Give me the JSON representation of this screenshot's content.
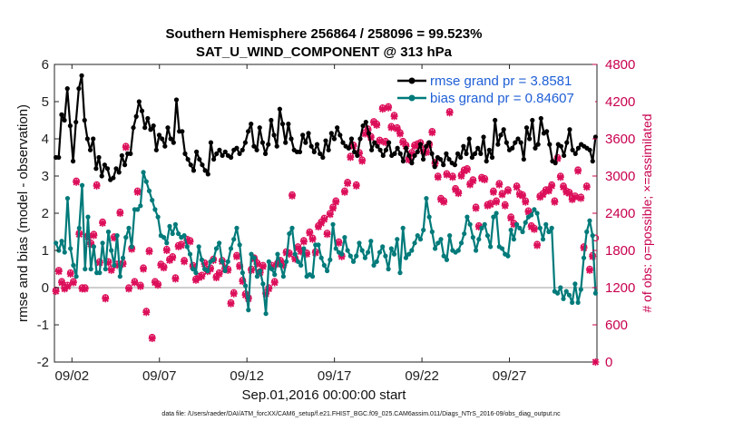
{
  "title_line1": "Southern Hemisphere 256864 / 258096 = 99.523%",
  "title_line2": "SAT_U_WIND_COMPONENT @ 313 hPa",
  "footnote": "data file: /Users/raeder/DAI/ATM_forcXX/CAM6_setup/f.e21.FHIST_BGC.f09_025.CAM6assim.011/Diags_NTrS_2016-09/obs_diag_output.nc",
  "chart_data": {
    "type": "line",
    "xlabel": "Sep.01,2016 00:00:00 start",
    "ylabel": "rmse and bias (model - observation)",
    "ylabel_right": "# of obs: o=possible; ×=assimilated",
    "xlim": [
      0,
      31
    ],
    "ylim": [
      -2,
      6
    ],
    "ylim_right": [
      0,
      4800
    ],
    "x_ticks": [
      1,
      6,
      11,
      16,
      21,
      26
    ],
    "x_tick_labels": [
      "09/02",
      "09/07",
      "09/12",
      "09/17",
      "09/22",
      "09/27"
    ],
    "y_ticks": [
      -2,
      -1,
      0,
      1,
      2,
      3,
      4,
      5,
      6
    ],
    "y_tick_labels": [
      "-2",
      "-1",
      "0",
      "1",
      "2",
      "3",
      "4",
      "5",
      "6"
    ],
    "y_right_ticks": [
      0,
      600,
      1200,
      1800,
      2400,
      3000,
      3600,
      4200,
      4800
    ],
    "y_right_tick_labels": [
      "0",
      "600",
      "1200",
      "1800",
      "2400",
      "3000",
      "3600",
      "4200",
      "4800"
    ],
    "legend_position": "top-right",
    "zero_line": 0,
    "series": [
      {
        "name": "rmse grand pr = 3.8581",
        "color": "#000000",
        "marker": "circle",
        "values": [
          3.5,
          3.5,
          4.65,
          4.5,
          5.35,
          4.35,
          3.4,
          4.45,
          5.35,
          5.7,
          4.5,
          4.0,
          3.7,
          4.0,
          3.2,
          3.5,
          3.0,
          3.3,
          3.2,
          2.9,
          2.95,
          3.2,
          3.1,
          3.55,
          3.3,
          3.6,
          3.6,
          4.3,
          4.6,
          5.0,
          4.75,
          4.3,
          4.55,
          4.25,
          4.35,
          3.7,
          4.1,
          4.0,
          3.8,
          4.3,
          4.0,
          3.9,
          5.05,
          4.2,
          4.2,
          3.6,
          3.45,
          3.3,
          3.15,
          3.65,
          3.45,
          3.3,
          3.15,
          3.05,
          3.9,
          3.45,
          3.6,
          3.7,
          3.55,
          3.65,
          3.55,
          3.5,
          3.7,
          3.75,
          3.6,
          3.7,
          3.9,
          4.2,
          4.4,
          3.8,
          3.7,
          4.3,
          3.9,
          3.6,
          3.85,
          4.5,
          4.1,
          3.8,
          4.8,
          4.4,
          3.9,
          4.4,
          4.0,
          3.7,
          3.65,
          3.65,
          4.1,
          3.9,
          4.15,
          3.8,
          3.65,
          3.85,
          3.6,
          3.5,
          3.95,
          3.7,
          4.15,
          4.0,
          4.3,
          4.1,
          3.9,
          3.8,
          3.75,
          4.0,
          3.65,
          3.55,
          4.0,
          4.35,
          4.45,
          4.15,
          3.7,
          3.9,
          3.8,
          3.7,
          3.55,
          3.7,
          3.9,
          3.55,
          3.6,
          3.75,
          3.6,
          3.4,
          3.75,
          3.55,
          3.35,
          3.55,
          3.65,
          3.85,
          3.45,
          3.8,
          3.9,
          3.6,
          3.25,
          3.5,
          3.45,
          3.3,
          3.6,
          3.45,
          3.35,
          3.3,
          3.6,
          3.5,
          3.8,
          3.6,
          4.0,
          3.5,
          3.6,
          3.75,
          3.6,
          4.05,
          3.4,
          3.7,
          3.5,
          4.5,
          3.85,
          4.1,
          4.25,
          3.9,
          3.7,
          3.75,
          3.9,
          4.0,
          3.9,
          3.45,
          4.3,
          4.0,
          4.5,
          3.75,
          3.85,
          4.55,
          4.15,
          4.2,
          3.85,
          3.4,
          3.35,
          3.85,
          3.8,
          3.55,
          3.9,
          4.25,
          3.7,
          3.6,
          3.75,
          3.85,
          3.8,
          3.75,
          3.7,
          3.4,
          4.05
        ]
      },
      {
        "name": "bias grand pr = 0.84607",
        "color": "#007a7a",
        "marker": "circle",
        "values": [
          1.2,
          1.0,
          1.25,
          0.95,
          2.4,
          1.05,
          0.6,
          0.3,
          1.6,
          2.75,
          0.5,
          1.9,
          0.5,
          1.1,
          0.4,
          0.4,
          1.2,
          0.5,
          1.5,
          1.0,
          0.6,
          1.4,
          0.3,
          0.8,
          1.35,
          1.6,
          1.1,
          2.1,
          2.1,
          2.2,
          3.1,
          2.85,
          2.6,
          2.35,
          2.1,
          1.9,
          1.4,
          1.35,
          1.2,
          1.65,
          1.45,
          1.7,
          1.45,
          1.35,
          1.4,
          1.1,
          0.9,
          0.5,
          0.4,
          1.1,
          0.75,
          0.5,
          0.45,
          0.7,
          0.75,
          1.05,
          1.2,
          0.7,
          0.45,
          0.7,
          1.05,
          1.3,
          1.6,
          1.15,
          0.4,
          0.05,
          -0.6,
          0.9,
          0.8,
          0.3,
          0.45,
          0.1,
          -0.7,
          0.7,
          0.5,
          0.35,
          0.9,
          0.6,
          0.3,
          0.7,
          1.45,
          1.6,
          0.9,
          0.7,
          0.6,
          1.05,
          0.3,
          0.35,
          0.3,
          1.15,
          1.15,
          0.8,
          0.6,
          0.45,
          0.75,
          1.7,
          1.05,
          0.95,
          0.9,
          1.35,
          1.0,
          0.85,
          0.7,
          0.85,
          1.2,
          1.0,
          0.8,
          0.95,
          1.25,
          0.6,
          0.7,
          0.95,
          1.1,
          0.85,
          0.5,
          1.05,
          0.9,
          1.3,
          0.4,
          1.6,
          0.8,
          0.9,
          1.0,
          1.2,
          1.4,
          1.3,
          1.55,
          2.4,
          1.9,
          1.5,
          1.05,
          1.2,
          1.3,
          0.85,
          0.75,
          1.4,
          1.0,
          0.95,
          1.0,
          1.2,
          1.45,
          1.9,
          1.7,
          1.35,
          1.0,
          1.3,
          1.6,
          1.7,
          1.4,
          1.1,
          1.9,
          2.0,
          1.1,
          1.05,
          0.9,
          0.85,
          1.55,
          1.3,
          1.7,
          1.6,
          1.5,
          1.75,
          1.9,
          1.95,
          2.1,
          2.0,
          1.6,
          1.3,
          1.7,
          1.5,
          1.6,
          -0.1,
          -0.15,
          0.0,
          -0.3,
          -0.1,
          -0.2,
          -0.4,
          0.1,
          -0.4,
          -0.05,
          0.8,
          1.5,
          1.8,
          1.4,
          -0.15
        ]
      },
      {
        "name": "possible",
        "color": "#dc0f5a",
        "marker": "circle-open",
        "axis": "right",
        "values": [
          1160,
          1480,
          1300,
          1200,
          1240,
          1440,
          1300,
          2920,
          2080,
          1200,
          1200,
          2040,
          1920,
          2060,
          2860,
          1620,
          2260,
          1040,
          1620,
          1500,
          2020,
          1580,
          2420,
          1600,
          3480,
          1200,
          1840,
          1300,
          2760,
          1240,
          1520,
          820,
          1800,
          400,
          1300,
          1260,
          1580,
          1540,
          1820,
          1660,
          1700,
          1360,
          1880,
          1900,
          1640,
          1980,
          1960,
          1560,
          1340,
          1380,
          1400,
          1600,
          1480,
          1520,
          1660,
          1380,
          1440,
          1640,
          1520,
          1500,
          960,
          1120,
          1720,
          1560,
          1320,
          1100,
          1040,
          1500,
          1680,
          1600,
          1460,
          1560,
          1120,
          1200,
          1560,
          1300,
          1600,
          1640,
          1580,
          1780,
          1760,
          2700,
          1680,
          1860,
          1800,
          1960,
          1760,
          2100,
          2000,
          1780,
          2200,
          2260,
          2320,
          2080,
          2400,
          2500,
          2600,
          1940,
          1720,
          2760,
          2900,
          3320,
          3500,
          2860,
          3380,
          3260,
          3700,
          3760,
          3640,
          3880,
          3840,
          3580,
          4100,
          3560,
          4120,
          3800,
          3980,
          3780,
          3700,
          3560,
          3500,
          3280,
          3380,
          3500,
          3520,
          3540,
          3420,
          3400,
          3520,
          3720,
          3220,
          3000,
          2640,
          2600,
          3040,
          4040,
          3000,
          2800,
          2740,
          3020,
          3100,
          3120,
          2880,
          2940,
          2500,
          2200,
          2980,
          2960,
          2540,
          2560,
          2760,
          2600,
          2880,
          2720,
          2540,
          2780,
          2340,
          2240,
          2840,
          2720,
          2700,
          2600,
          2440,
          2200,
          2160,
          1900,
          2680,
          2720,
          2780,
          2780,
          2860,
          2600,
          3300,
          3000,
          2840,
          2760,
          2740,
          2640,
          2680,
          3100,
          2660,
          1860,
          2840,
          1500,
          1720,
          2000
        ]
      },
      {
        "name": "assimilated",
        "color": "#dc0f5a",
        "marker": "x",
        "axis": "right",
        "values": [
          1140,
          1460,
          1280,
          1180,
          1220,
          1420,
          1280,
          2900,
          2060,
          1180,
          1180,
          2020,
          1900,
          2040,
          2840,
          1600,
          2240,
          1020,
          1600,
          1480,
          2000,
          1560,
          2400,
          1580,
          3460,
          1180,
          1820,
          1280,
          2740,
          1220,
          1500,
          800,
          1780,
          380,
          1280,
          1240,
          1560,
          1520,
          1800,
          1640,
          1680,
          1340,
          1860,
          1880,
          1620,
          1960,
          1940,
          1540,
          1320,
          1360,
          1380,
          1580,
          1460,
          1500,
          1640,
          1360,
          1420,
          1620,
          1500,
          1480,
          940,
          1100,
          1700,
          1540,
          1300,
          1080,
          1020,
          1480,
          1660,
          1580,
          1440,
          1540,
          1100,
          1180,
          1540,
          1280,
          1580,
          1620,
          1560,
          1760,
          1740,
          2680,
          1660,
          1840,
          1780,
          1940,
          1740,
          2080,
          1980,
          1760,
          2180,
          2240,
          2300,
          2060,
          2380,
          2480,
          2580,
          1920,
          1700,
          2740,
          2880,
          3300,
          3480,
          2840,
          3360,
          3240,
          3680,
          3740,
          3620,
          3860,
          3820,
          3560,
          4080,
          3540,
          4100,
          3780,
          3960,
          3760,
          3680,
          3540,
          3480,
          3260,
          3360,
          3480,
          3500,
          3520,
          3400,
          3380,
          3500,
          3700,
          3200,
          2980,
          2620,
          2580,
          3020,
          4020,
          2980,
          2780,
          2720,
          3000,
          3080,
          3100,
          2860,
          2920,
          2480,
          2180,
          2960,
          2940,
          2520,
          2540,
          2740,
          2580,
          2860,
          2700,
          2520,
          2760,
          2320,
          2220,
          2820,
          2700,
          2680,
          2580,
          2420,
          2180,
          2140,
          1880,
          2660,
          2700,
          2760,
          2760,
          2840,
          2580,
          3280,
          2980,
          2820,
          2740,
          2720,
          2620,
          2660,
          3080,
          2640,
          1840,
          2820,
          1480,
          1700,
          0
        ]
      }
    ]
  }
}
